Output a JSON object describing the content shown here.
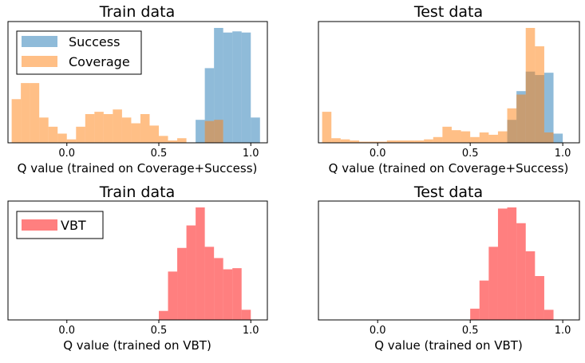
{
  "colors": {
    "success": "#1f77b4",
    "coverage": "#ff7f0e",
    "vbt": "#ff0000",
    "bar_alpha": 0.5
  },
  "chart_data": [
    {
      "type": "bar",
      "title": "Train data",
      "xlabel": "Q value (trained on Coverage+Success)",
      "xlim": [
        -0.32,
        1.09
      ],
      "ylim": [
        0,
        1.0
      ],
      "x_ticks": [
        "0.0",
        "0.5",
        "1.0"
      ],
      "x_tick_values": [
        0.0,
        0.5,
        1.0
      ],
      "legend": {
        "placement": "top-left",
        "entries": [
          "Success",
          "Coverage"
        ]
      },
      "series": [
        {
          "name": "Success",
          "color_key": "success",
          "bins": [
            [
              0.7,
              0.75,
              0.2
            ],
            [
              0.75,
              0.8,
              0.65
            ],
            [
              0.8,
              0.85,
              1.0
            ],
            [
              0.85,
              0.9,
              0.96
            ],
            [
              0.9,
              0.95,
              0.97
            ],
            [
              0.95,
              1.0,
              0.96
            ],
            [
              1.0,
              1.05,
              0.22
            ]
          ]
        },
        {
          "name": "Coverage",
          "color_key": "coverage",
          "bins": [
            [
              -0.3,
              -0.25,
              0.38
            ],
            [
              -0.25,
              -0.2,
              0.52
            ],
            [
              -0.2,
              -0.15,
              0.52
            ],
            [
              -0.15,
              -0.1,
              0.22
            ],
            [
              -0.1,
              -0.05,
              0.14
            ],
            [
              -0.05,
              0.0,
              0.08
            ],
            [
              0.0,
              0.05,
              0.03
            ],
            [
              0.05,
              0.1,
              0.14
            ],
            [
              0.1,
              0.15,
              0.25
            ],
            [
              0.15,
              0.2,
              0.27
            ],
            [
              0.2,
              0.25,
              0.25
            ],
            [
              0.25,
              0.3,
              0.29
            ],
            [
              0.3,
              0.35,
              0.22
            ],
            [
              0.35,
              0.4,
              0.17
            ],
            [
              0.4,
              0.45,
              0.25
            ],
            [
              0.45,
              0.5,
              0.15
            ],
            [
              0.5,
              0.55,
              0.06
            ],
            [
              0.55,
              0.6,
              0.02
            ],
            [
              0.6,
              0.65,
              0.04
            ],
            [
              0.75,
              0.8,
              0.19
            ],
            [
              0.8,
              0.85,
              0.2
            ]
          ]
        }
      ]
    },
    {
      "type": "bar",
      "title": "Test data",
      "xlabel": "Q value (trained on Coverage+Success)",
      "xlim": [
        -0.32,
        1.09
      ],
      "ylim": [
        0,
        1.0
      ],
      "x_ticks": [
        "0.0",
        "0.5",
        "1.0"
      ],
      "x_tick_values": [
        0.0,
        0.5,
        1.0
      ],
      "series": [
        {
          "name": "Success",
          "color_key": "success",
          "bins": [
            [
              0.7,
              0.75,
              0.2
            ],
            [
              0.75,
              0.8,
              0.45
            ],
            [
              0.8,
              0.85,
              0.62
            ],
            [
              0.85,
              0.9,
              0.59
            ],
            [
              0.9,
              0.95,
              0.61
            ],
            [
              0.95,
              1.0,
              0.08
            ]
          ]
        },
        {
          "name": "Coverage",
          "color_key": "coverage",
          "bins": [
            [
              -0.3,
              -0.25,
              0.27
            ],
            [
              -0.25,
              -0.2,
              0.04
            ],
            [
              -0.2,
              -0.15,
              0.03
            ],
            [
              -0.15,
              -0.1,
              0.02
            ],
            [
              -0.1,
              -0.05,
              0.01
            ],
            [
              -0.05,
              0.0,
              0.01
            ],
            [
              0.0,
              0.05,
              0.01
            ],
            [
              0.05,
              0.1,
              0.02
            ],
            [
              0.1,
              0.15,
              0.02
            ],
            [
              0.15,
              0.2,
              0.02
            ],
            [
              0.2,
              0.25,
              0.02
            ],
            [
              0.25,
              0.3,
              0.03
            ],
            [
              0.3,
              0.35,
              0.05
            ],
            [
              0.35,
              0.4,
              0.14
            ],
            [
              0.4,
              0.45,
              0.11
            ],
            [
              0.45,
              0.5,
              0.1
            ],
            [
              0.5,
              0.55,
              0.05
            ],
            [
              0.55,
              0.6,
              0.09
            ],
            [
              0.6,
              0.65,
              0.07
            ],
            [
              0.65,
              0.7,
              0.1
            ],
            [
              0.7,
              0.75,
              0.3
            ],
            [
              0.75,
              0.8,
              0.42
            ],
            [
              0.8,
              0.85,
              1.0
            ],
            [
              0.85,
              0.9,
              0.84
            ],
            [
              0.9,
              0.95,
              0.09
            ]
          ]
        }
      ]
    },
    {
      "type": "bar",
      "title": "Train data",
      "xlabel": "Q value (trained on VBT)",
      "xlim": [
        -0.32,
        1.09
      ],
      "ylim": [
        0,
        1.0
      ],
      "x_ticks": [
        "0.0",
        "0.5",
        "1.0"
      ],
      "x_tick_values": [
        0.0,
        0.5,
        1.0
      ],
      "legend": {
        "placement": "top-left",
        "entries": [
          "VBT"
        ]
      },
      "series": [
        {
          "name": "VBT",
          "color_key": "vbt",
          "bins": [
            [
              0.5,
              0.55,
              0.08
            ],
            [
              0.55,
              0.6,
              0.43
            ],
            [
              0.6,
              0.65,
              0.64
            ],
            [
              0.65,
              0.7,
              0.84
            ],
            [
              0.7,
              0.75,
              1.0
            ],
            [
              0.75,
              0.8,
              0.65
            ],
            [
              0.8,
              0.85,
              0.55
            ],
            [
              0.85,
              0.9,
              0.45
            ],
            [
              0.9,
              0.95,
              0.46
            ],
            [
              0.95,
              1.0,
              0.09
            ]
          ]
        }
      ]
    },
    {
      "type": "bar",
      "title": "Test data",
      "xlabel": "Q value (trained on VBT)",
      "xlim": [
        -0.32,
        1.09
      ],
      "ylim": [
        0,
        1.0
      ],
      "x_ticks": [
        "0.0",
        "0.5",
        "1.0"
      ],
      "x_tick_values": [
        0.0,
        0.5,
        1.0
      ],
      "series": [
        {
          "name": "VBT",
          "color_key": "vbt",
          "bins": [
            [
              0.5,
              0.55,
              0.1
            ],
            [
              0.55,
              0.6,
              0.35
            ],
            [
              0.6,
              0.65,
              0.65
            ],
            [
              0.65,
              0.7,
              0.99
            ],
            [
              0.7,
              0.75,
              1.0
            ],
            [
              0.75,
              0.8,
              0.86
            ],
            [
              0.8,
              0.85,
              0.61
            ],
            [
              0.85,
              0.9,
              0.39
            ],
            [
              0.9,
              0.95,
              0.09
            ]
          ]
        }
      ]
    }
  ]
}
